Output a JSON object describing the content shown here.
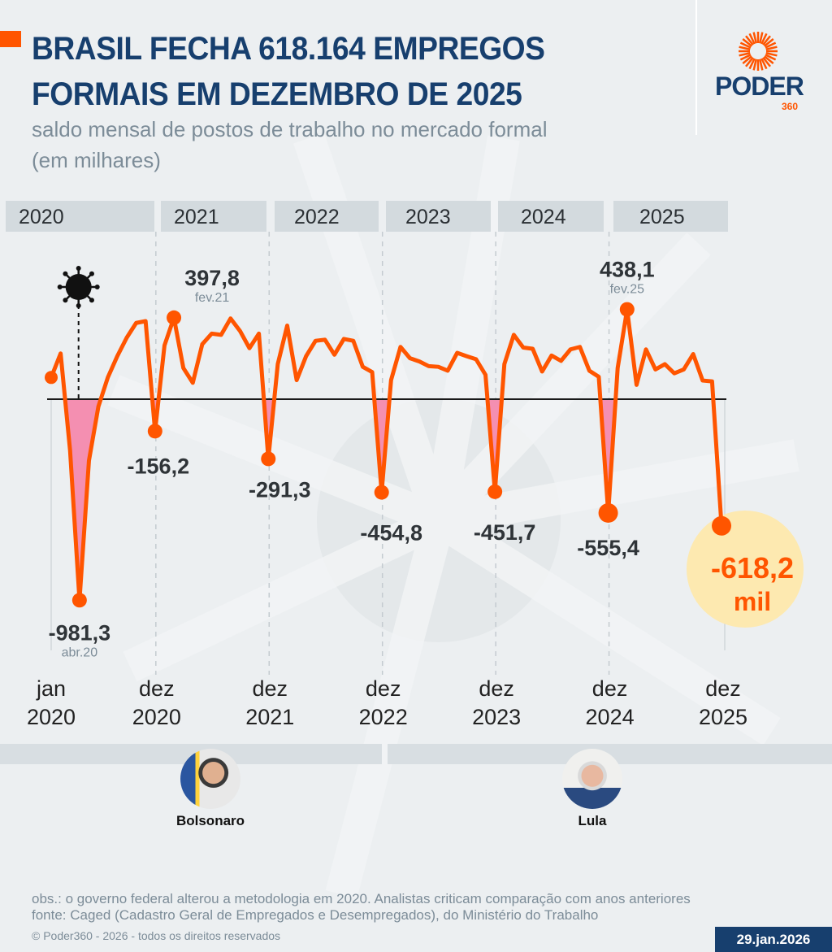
{
  "header": {
    "title_line1": "BRASIL FECHA 618.164 EMPREGOS",
    "title_line2": "FORMAIS EM DEZEMBRO DE 2025",
    "subtitle_line1": "saldo mensal de postos de trabalho no mercado formal",
    "subtitle_line2": "(em milhares)"
  },
  "logo": {
    "text": "PODER",
    "sub": "360"
  },
  "colors": {
    "line": "#ff5500",
    "fill": "#f48fb1",
    "title": "#173f6e",
    "highlight": "#fde9b0"
  },
  "chart_data": {
    "type": "line",
    "title": "BRASIL FECHA 618.164 EMPREGOS FORMAIS EM DEZEMBRO DE 2025",
    "ylabel": "saldo mensal (em milhares)",
    "start": "jan 2020",
    "end": "dez 2025",
    "years": [
      "2020",
      "2021",
      "2022",
      "2023",
      "2024",
      "2025"
    ],
    "x_ticks": [
      {
        "month": "jan",
        "year": "2020"
      },
      {
        "month": "dez",
        "year": "2020"
      },
      {
        "month": "dez",
        "year": "2021"
      },
      {
        "month": "dez",
        "year": "2022"
      },
      {
        "month": "dez",
        "year": "2023"
      },
      {
        "month": "dez",
        "year": "2024"
      },
      {
        "month": "dez",
        "year": "2025"
      }
    ],
    "values": [
      106,
      223,
      -250,
      -981.3,
      -300,
      -36,
      106,
      210,
      300,
      372,
      381,
      -156.2,
      262,
      397.8,
      152,
      80,
      268,
      320,
      314,
      394,
      333,
      249,
      320,
      -291.3,
      171,
      359,
      93,
      210,
      285,
      290,
      217,
      294,
      285,
      158,
      132,
      -454.8,
      93,
      255,
      200,
      184,
      161,
      158,
      139,
      226,
      210,
      195,
      119,
      -451.7,
      171,
      314,
      252,
      246,
      135,
      213,
      187,
      243,
      255,
      139,
      109,
      -555.4,
      152,
      438.1,
      70,
      243,
      145,
      171,
      126,
      145,
      220,
      91,
      87,
      -618.2
    ],
    "annotations": [
      {
        "index": 3,
        "label": "-981,3",
        "sub": "abr.20"
      },
      {
        "index": 11,
        "label": "-156,2"
      },
      {
        "index": 13,
        "label": "397,8",
        "sub": "fev.21"
      },
      {
        "index": 23,
        "label": "-291,3"
      },
      {
        "index": 35,
        "label": "-454,8"
      },
      {
        "index": 47,
        "label": "-451,7"
      },
      {
        "index": 59,
        "label": "-555,4"
      },
      {
        "index": 61,
        "label": "438,1",
        "sub": "fev.25"
      },
      {
        "index": 71,
        "label": "-618,2",
        "sub": "mil"
      }
    ],
    "event": "covid-19 (mar.20)"
  },
  "presidents": [
    {
      "name": "Bolsonaro"
    },
    {
      "name": "Lula"
    }
  ],
  "footer": {
    "obs": "obs.: o governo federal alterou a metodologia em 2020. Analistas criticam comparação com anos anteriores",
    "source": "fonte: Caged (Cadastro Geral de Empregados e Desempregados), do Ministério do Trabalho",
    "copyright": "© Poder360 - 2026 - todos os direitos reservados",
    "date": "29.jan.2026"
  }
}
